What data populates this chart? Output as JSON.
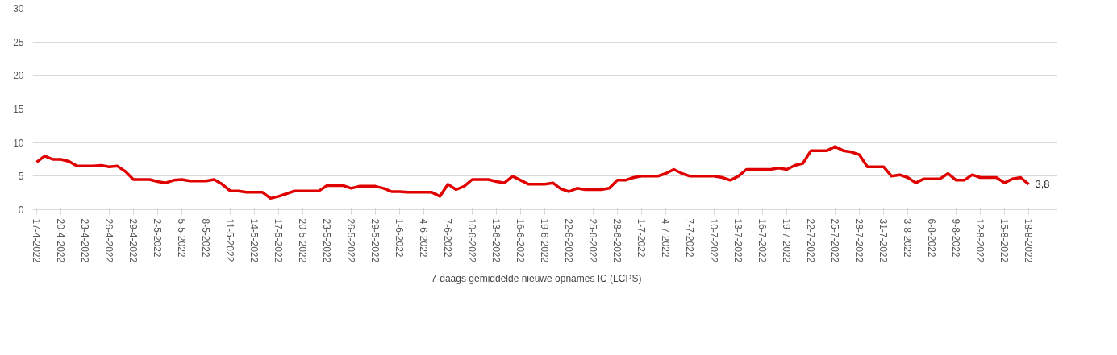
{
  "chart_data": {
    "type": "line",
    "categories": [
      "17-4-2022",
      null,
      null,
      "20-4-2022",
      null,
      null,
      "23-4-2022",
      null,
      null,
      "26-4-2022",
      null,
      null,
      "29-4-2022",
      null,
      null,
      "2-5-2022",
      null,
      null,
      "5-5-2022",
      null,
      null,
      "8-5-2022",
      null,
      null,
      "11-5-2022",
      null,
      null,
      "14-5-2022",
      null,
      null,
      "17-5-2022",
      null,
      null,
      "20-5-2022",
      null,
      null,
      "23-5-2022",
      null,
      null,
      "26-5-2022",
      null,
      null,
      "29-5-2022",
      null,
      null,
      "1-6-2022",
      null,
      null,
      "4-6-2022",
      null,
      null,
      "7-6-2022",
      null,
      null,
      "10-6-2022",
      null,
      null,
      "13-6-2022",
      null,
      null,
      "16-6-2022",
      null,
      null,
      "19-6-2022",
      null,
      null,
      "22-6-2022",
      null,
      null,
      "25-6-2022",
      null,
      null,
      "28-6-2022",
      null,
      null,
      "1-7-2022",
      null,
      null,
      "4-7-2022",
      null,
      null,
      "7-7-2022",
      null,
      null,
      "10-7-2022",
      null,
      null,
      "13-7-2022",
      null,
      null,
      "16-7-2022",
      null,
      null,
      "19-7-2022",
      null,
      null,
      "22-7-2022",
      null,
      null,
      "25-7-2022",
      null,
      null,
      "28-7-2022",
      null,
      null,
      "31-7-2022",
      null,
      null,
      "3-8-2022",
      null,
      null,
      "6-8-2022",
      null,
      null,
      "9-8-2022",
      null,
      null,
      "12-8-2022",
      null,
      null,
      "15-8-2022",
      null,
      null,
      "18-8-2022"
    ],
    "series": [
      {
        "name": "7-daags gemiddelde nieuwe opnames IC (LCPS)",
        "color": "#e00000",
        "values": [
          7.1,
          8.0,
          7.5,
          7.5,
          7.2,
          6.5,
          6.5,
          6.5,
          6.6,
          6.4,
          6.5,
          5.7,
          4.5,
          4.5,
          4.5,
          4.2,
          4.0,
          4.4,
          4.5,
          4.3,
          4.3,
          4.3,
          4.5,
          3.8,
          2.8,
          2.8,
          2.6,
          2.6,
          2.6,
          1.7,
          2.0,
          2.4,
          2.8,
          2.8,
          2.8,
          2.8,
          3.6,
          3.6,
          3.6,
          3.2,
          3.5,
          3.5,
          3.5,
          3.2,
          2.7,
          2.7,
          2.6,
          2.6,
          2.6,
          2.6,
          2.0,
          3.8,
          3.0,
          3.5,
          4.5,
          4.5,
          4.5,
          4.2,
          4.0,
          5.0,
          4.4,
          3.8,
          3.8,
          3.8,
          4.0,
          3.1,
          2.7,
          3.2,
          3.0,
          3.0,
          3.0,
          3.2,
          4.4,
          4.4,
          4.8,
          5.0,
          5.0,
          5.0,
          5.4,
          6.0,
          5.4,
          5.0,
          5.0,
          5.0,
          5.0,
          4.8,
          4.4,
          5.0,
          6.0,
          6.0,
          6.0,
          6.0,
          6.2,
          6.0,
          6.6,
          6.9,
          8.8,
          8.8,
          8.8,
          9.4,
          8.8,
          8.6,
          8.2,
          6.4,
          6.4,
          6.4,
          5.0,
          5.2,
          4.8,
          4.0,
          4.6,
          4.6,
          4.6,
          5.4,
          4.4,
          4.4,
          5.2,
          4.8,
          4.8,
          4.8,
          4.0,
          4.6,
          4.8,
          3.8
        ],
        "value_labels": [
          null,
          null,
          null,
          null,
          null,
          null,
          null,
          null,
          null,
          null,
          null,
          null,
          null,
          null,
          null,
          null,
          null,
          null,
          null,
          null,
          null,
          null,
          null,
          null,
          null,
          null,
          null,
          null,
          null,
          null,
          null,
          null,
          null,
          null,
          null,
          null,
          null,
          null,
          null,
          null,
          null,
          null,
          null,
          null,
          null,
          null,
          null,
          null,
          null,
          null,
          null,
          null,
          null,
          null,
          null,
          null,
          null,
          null,
          null,
          null,
          null,
          null,
          null,
          null,
          null,
          null,
          null,
          null,
          null,
          null,
          null,
          null,
          null,
          null,
          null,
          null,
          null,
          null,
          null,
          null,
          null,
          null,
          null,
          null,
          null,
          null,
          null,
          null,
          null,
          null,
          null,
          null,
          null,
          null,
          null,
          null,
          null,
          null,
          null,
          null,
          null,
          null,
          null,
          null,
          null,
          null,
          null,
          null,
          null,
          null,
          null,
          null,
          null,
          null,
          null,
          null,
          null,
          null,
          null,
          null,
          null,
          null,
          null,
          "3,8"
        ]
      }
    ],
    "ylim": [
      0,
      30
    ],
    "yticks": [
      0,
      5,
      10,
      15,
      20,
      25,
      30
    ],
    "grid": "y",
    "legend": "bottom",
    "line_style": "solid"
  }
}
